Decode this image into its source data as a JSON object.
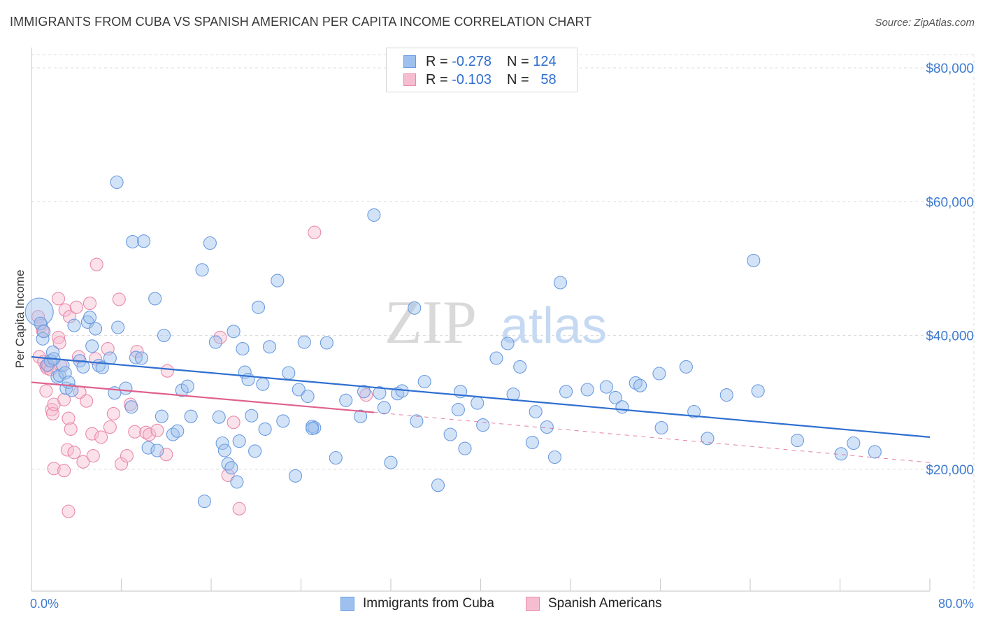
{
  "title": "IMMIGRANTS FROM CUBA VS SPANISH AMERICAN PER CAPITA INCOME CORRELATION CHART",
  "source": "Source: ZipAtlas.com",
  "watermark": {
    "zip": "ZIP",
    "atlas": "atlas"
  },
  "legend": {
    "rows": [
      {
        "r_label": "R =",
        "r_value": "-0.278",
        "n_label": "N =",
        "n_value": "124",
        "color": "#9dc0ee",
        "border": "#6a9be0"
      },
      {
        "r_label": "R =",
        "r_value": "-0.103",
        "n_label": "N =",
        "n_value": "58",
        "color": "#f6bdd0",
        "border": "#e98aaa"
      }
    ]
  },
  "bottom_legend": [
    "Immigrants from Cuba",
    "Spanish Americans"
  ],
  "chart_data": {
    "type": "scatter",
    "title": "IMMIGRANTS FROM CUBA VS SPANISH AMERICAN PER CAPITA INCOME CORRELATION CHART",
    "xlabel": "",
    "ylabel": "Per Capita Income",
    "xlim": [
      0,
      80
    ],
    "ylim": [
      0,
      80000
    ],
    "x_tick_labels": [
      "0.0%",
      "80.0%"
    ],
    "y_ticks": [
      20000,
      40000,
      60000,
      80000
    ],
    "y_tick_labels": [
      "$20,000",
      "$40,000",
      "$60,000",
      "$80,000"
    ],
    "grid": true,
    "legend_position": "top-center",
    "series": [
      {
        "name": "Immigrants from Cuba",
        "color": "#9dc0ee",
        "edge": "#6a9be0",
        "trend": {
          "x": [
            0,
            80
          ],
          "y": [
            36800,
            24800
          ],
          "color": "#2f6fd0"
        },
        "points": [
          [
            0.7,
            43500
          ],
          [
            0.8,
            41800
          ],
          [
            1.0,
            39500
          ],
          [
            1.1,
            40600
          ],
          [
            1.4,
            35600
          ],
          [
            1.7,
            36200
          ],
          [
            1.9,
            37500
          ],
          [
            2.0,
            36500
          ],
          [
            2.3,
            33800
          ],
          [
            2.5,
            34000
          ],
          [
            2.8,
            35500
          ],
          [
            3.0,
            34400
          ],
          [
            3.1,
            32100
          ],
          [
            3.3,
            33000
          ],
          [
            3.6,
            31800
          ],
          [
            3.8,
            41500
          ],
          [
            4.3,
            36200
          ],
          [
            4.6,
            35300
          ],
          [
            5.0,
            42000
          ],
          [
            5.2,
            42700
          ],
          [
            5.4,
            38400
          ],
          [
            5.7,
            41000
          ],
          [
            6.0,
            35500
          ],
          [
            6.3,
            35200
          ],
          [
            7.0,
            36600
          ],
          [
            7.4,
            31400
          ],
          [
            7.6,
            62900
          ],
          [
            7.7,
            41200
          ],
          [
            8.4,
            32100
          ],
          [
            8.9,
            29300
          ],
          [
            9.0,
            54000
          ],
          [
            9.3,
            36700
          ],
          [
            9.8,
            36600
          ],
          [
            10.0,
            54100
          ],
          [
            10.4,
            23200
          ],
          [
            11.0,
            45500
          ],
          [
            11.2,
            22800
          ],
          [
            11.6,
            27900
          ],
          [
            11.8,
            40000
          ],
          [
            12.6,
            25200
          ],
          [
            13.0,
            25700
          ],
          [
            13.4,
            31800
          ],
          [
            13.9,
            32400
          ],
          [
            14.2,
            27900
          ],
          [
            15.2,
            49800
          ],
          [
            15.4,
            15200
          ],
          [
            15.9,
            53800
          ],
          [
            16.4,
            39000
          ],
          [
            16.7,
            27800
          ],
          [
            17.0,
            23900
          ],
          [
            17.2,
            22800
          ],
          [
            17.5,
            20800
          ],
          [
            17.8,
            20200
          ],
          [
            18.0,
            40600
          ],
          [
            18.3,
            18100
          ],
          [
            18.5,
            24200
          ],
          [
            18.8,
            38000
          ],
          [
            19.0,
            34500
          ],
          [
            19.3,
            33400
          ],
          [
            19.6,
            28000
          ],
          [
            19.9,
            22700
          ],
          [
            20.2,
            44200
          ],
          [
            20.6,
            32700
          ],
          [
            20.8,
            26000
          ],
          [
            21.2,
            38300
          ],
          [
            21.9,
            48200
          ],
          [
            22.4,
            27200
          ],
          [
            22.9,
            34400
          ],
          [
            23.5,
            19000
          ],
          [
            23.8,
            31900
          ],
          [
            24.3,
            39000
          ],
          [
            24.6,
            30900
          ],
          [
            25.0,
            26400
          ],
          [
            25.2,
            26200
          ],
          [
            25.0,
            26100
          ],
          [
            26.3,
            38900
          ],
          [
            27.1,
            21700
          ],
          [
            28.0,
            30300
          ],
          [
            29.3,
            27900
          ],
          [
            29.6,
            31600
          ],
          [
            30.5,
            58000
          ],
          [
            31.0,
            31400
          ],
          [
            31.4,
            29200
          ],
          [
            32.0,
            21000
          ],
          [
            32.6,
            31300
          ],
          [
            33.0,
            31700
          ],
          [
            34.1,
            44100
          ],
          [
            34.3,
            27200
          ],
          [
            35.0,
            33100
          ],
          [
            36.2,
            17600
          ],
          [
            37.3,
            25200
          ],
          [
            38.0,
            28900
          ],
          [
            38.2,
            31600
          ],
          [
            38.6,
            23100
          ],
          [
            39.7,
            29900
          ],
          [
            40.2,
            26600
          ],
          [
            41.4,
            36600
          ],
          [
            42.4,
            38800
          ],
          [
            42.9,
            31200
          ],
          [
            43.5,
            35300
          ],
          [
            44.6,
            24000
          ],
          [
            44.9,
            28600
          ],
          [
            45.9,
            26300
          ],
          [
            46.6,
            21800
          ],
          [
            47.1,
            47900
          ],
          [
            47.6,
            31600
          ],
          [
            49.5,
            31900
          ],
          [
            51.2,
            32300
          ],
          [
            52.0,
            30700
          ],
          [
            52.6,
            29300
          ],
          [
            53.8,
            32900
          ],
          [
            54.2,
            32500
          ],
          [
            55.9,
            34300
          ],
          [
            56.1,
            26200
          ],
          [
            58.3,
            35300
          ],
          [
            59.0,
            28600
          ],
          [
            60.2,
            24600
          ],
          [
            61.9,
            31100
          ],
          [
            64.3,
            51200
          ],
          [
            64.7,
            31700
          ],
          [
            68.2,
            24300
          ],
          [
            72.1,
            22300
          ],
          [
            73.2,
            23900
          ],
          [
            75.1,
            22600
          ]
        ]
      },
      {
        "name": "Spanish Americans",
        "color": "#f6bdd0",
        "edge": "#e98aaa",
        "trend": {
          "x": [
            0,
            30.5
          ],
          "y": [
            33000,
            28500
          ],
          "dashed_to": [
            80,
            21000
          ],
          "color": "#e0608e"
        },
        "points": [
          [
            0.6,
            42800
          ],
          [
            0.7,
            36800
          ],
          [
            0.9,
            41500
          ],
          [
            1.0,
            40700
          ],
          [
            1.1,
            36100
          ],
          [
            1.3,
            35400
          ],
          [
            1.3,
            31700
          ],
          [
            1.4,
            35100
          ],
          [
            1.5,
            35500
          ],
          [
            1.7,
            34900
          ],
          [
            1.8,
            28900
          ],
          [
            1.9,
            28300
          ],
          [
            2.0,
            29700
          ],
          [
            2.0,
            20100
          ],
          [
            2.4,
            45500
          ],
          [
            2.4,
            39700
          ],
          [
            2.5,
            38900
          ],
          [
            2.6,
            35500
          ],
          [
            2.9,
            19800
          ],
          [
            2.9,
            30400
          ],
          [
            3.0,
            43800
          ],
          [
            3.2,
            22900
          ],
          [
            3.3,
            27600
          ],
          [
            3.3,
            13700
          ],
          [
            3.4,
            42800
          ],
          [
            3.5,
            26000
          ],
          [
            3.8,
            22500
          ],
          [
            4.0,
            44200
          ],
          [
            4.2,
            36800
          ],
          [
            4.3,
            31500
          ],
          [
            4.6,
            21100
          ],
          [
            4.9,
            30200
          ],
          [
            5.2,
            44800
          ],
          [
            5.4,
            25300
          ],
          [
            5.5,
            22000
          ],
          [
            5.7,
            36500
          ],
          [
            5.8,
            50600
          ],
          [
            6.2,
            24800
          ],
          [
            6.8,
            38000
          ],
          [
            7.0,
            26300
          ],
          [
            7.3,
            28300
          ],
          [
            7.8,
            45400
          ],
          [
            8.0,
            20800
          ],
          [
            8.5,
            22000
          ],
          [
            8.8,
            29700
          ],
          [
            9.2,
            25600
          ],
          [
            9.4,
            37600
          ],
          [
            10.2,
            25500
          ],
          [
            10.5,
            25200
          ],
          [
            11.2,
            25800
          ],
          [
            12.0,
            22200
          ],
          [
            12.1,
            34700
          ],
          [
            16.8,
            39700
          ],
          [
            17.5,
            19100
          ],
          [
            18.0,
            27000
          ],
          [
            18.5,
            14100
          ],
          [
            25.2,
            55400
          ],
          [
            29.8,
            31100
          ]
        ]
      }
    ]
  }
}
